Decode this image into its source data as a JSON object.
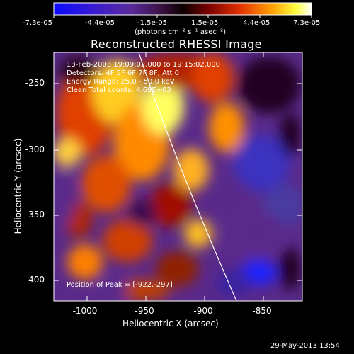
{
  "colorbar": {
    "tick_labels": [
      "-7.3e-05",
      "-4.4e-05",
      "-1.5e-05",
      "1.5e-05",
      "4.4e-05",
      "7.3e-05"
    ],
    "units": "(photons cm⁻² s⁻¹ asec⁻²)"
  },
  "image": {
    "title": "Reconstructed RHESSI Image",
    "info_lines": [
      "13-Feb-2003 19:09:02.000  to  19:15:02.000",
      "Detectors: 4F 5F 6F 7F 8F, Att 0",
      "Energy Range: 25.0 - 50.0 keV",
      "Clean     Total counts: 4.69E+03"
    ],
    "peak_label": "Position of Peak = [-922,-297]",
    "x_axis": {
      "label": "Heliocentric X (arcsec)",
      "ticks": [
        "-1000",
        "-950",
        "-900",
        "-850"
      ]
    },
    "y_axis": {
      "label": "Heliocentric Y (arcsec)",
      "ticks": [
        "-250",
        "-300",
        "-350",
        "-400"
      ]
    }
  },
  "footer_timestamp": "29-May-2013 13:54"
}
